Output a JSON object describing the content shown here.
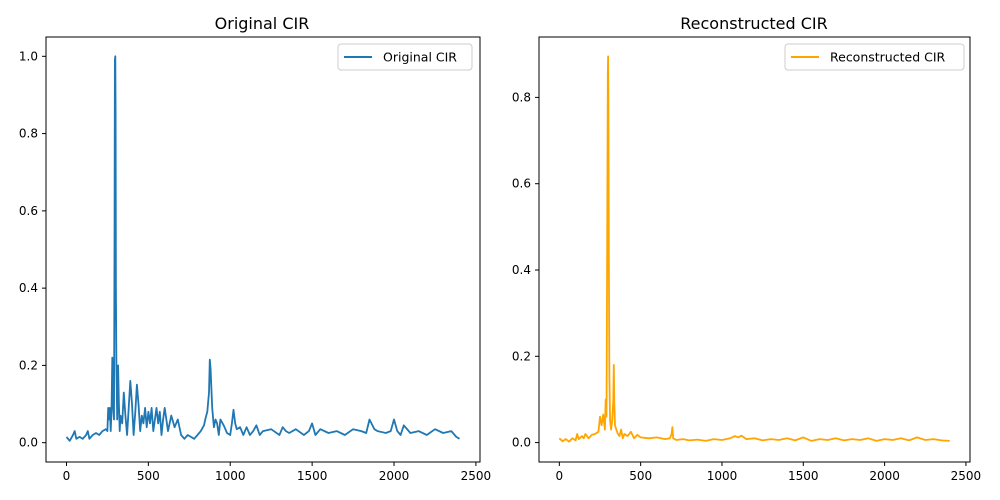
{
  "chart_data": [
    {
      "type": "line",
      "title": "Original CIR",
      "xlabel": "",
      "ylabel": "",
      "xlim": [
        -125,
        2525
      ],
      "ylim": [
        -0.05,
        1.05
      ],
      "xticks": [
        0,
        500,
        1000,
        1500,
        2000,
        2500
      ],
      "yticks": [
        0.0,
        0.2,
        0.4,
        0.6,
        0.8,
        1.0
      ],
      "xtick_labels": [
        "0",
        "500",
        "1000",
        "1500",
        "2000",
        "2500"
      ],
      "ytick_labels": [
        "0.0",
        "0.2",
        "0.4",
        "0.6",
        "0.8",
        "1.0"
      ],
      "grid": false,
      "legend_position": "top-right",
      "series": [
        {
          "name": "Original CIR",
          "color": "#1f77b4",
          "x": [
            0,
            20,
            40,
            50,
            60,
            80,
            100,
            120,
            130,
            140,
            160,
            180,
            200,
            220,
            240,
            250,
            255,
            260,
            265,
            270,
            275,
            280,
            285,
            290,
            293,
            296,
            298,
            300,
            302,
            305,
            310,
            315,
            320,
            325,
            330,
            340,
            350,
            360,
            370,
            380,
            390,
            400,
            410,
            420,
            430,
            440,
            450,
            460,
            470,
            480,
            490,
            500,
            510,
            520,
            530,
            540,
            550,
            560,
            570,
            580,
            590,
            600,
            620,
            640,
            660,
            680,
            700,
            720,
            740,
            760,
            780,
            800,
            820,
            840,
            850,
            860,
            870,
            875,
            880,
            885,
            890,
            900,
            910,
            920,
            930,
            940,
            960,
            980,
            1000,
            1010,
            1020,
            1030,
            1040,
            1060,
            1080,
            1100,
            1120,
            1140,
            1160,
            1180,
            1200,
            1250,
            1300,
            1320,
            1340,
            1360,
            1400,
            1450,
            1480,
            1500,
            1520,
            1550,
            1600,
            1650,
            1700,
            1750,
            1800,
            1830,
            1850,
            1880,
            1900,
            1950,
            1980,
            2000,
            2020,
            2040,
            2060,
            2100,
            2150,
            2200,
            2250,
            2300,
            2350,
            2380,
            2400
          ],
          "y": [
            0.015,
            0.005,
            0.02,
            0.03,
            0.01,
            0.015,
            0.01,
            0.02,
            0.03,
            0.01,
            0.02,
            0.025,
            0.02,
            0.03,
            0.035,
            0.03,
            0.09,
            0.06,
            0.09,
            0.03,
            0.08,
            0.22,
            0.1,
            0.06,
            0.5,
            0.99,
            1.0,
            0.85,
            0.4,
            0.2,
            0.06,
            0.2,
            0.1,
            0.03,
            0.07,
            0.05,
            0.13,
            0.07,
            0.02,
            0.09,
            0.16,
            0.1,
            0.02,
            0.08,
            0.15,
            0.1,
            0.03,
            0.07,
            0.05,
            0.09,
            0.04,
            0.08,
            0.05,
            0.09,
            0.03,
            0.06,
            0.09,
            0.05,
            0.08,
            0.02,
            0.06,
            0.09,
            0.03,
            0.07,
            0.04,
            0.06,
            0.02,
            0.01,
            0.02,
            0.015,
            0.01,
            0.02,
            0.03,
            0.045,
            0.065,
            0.08,
            0.13,
            0.215,
            0.19,
            0.14,
            0.09,
            0.04,
            0.06,
            0.05,
            0.02,
            0.06,
            0.045,
            0.025,
            0.02,
            0.05,
            0.085,
            0.05,
            0.035,
            0.04,
            0.02,
            0.04,
            0.02,
            0.03,
            0.045,
            0.02,
            0.03,
            0.035,
            0.02,
            0.04,
            0.03,
            0.025,
            0.035,
            0.02,
            0.03,
            0.05,
            0.02,
            0.035,
            0.025,
            0.03,
            0.02,
            0.035,
            0.03,
            0.025,
            0.06,
            0.035,
            0.03,
            0.025,
            0.03,
            0.06,
            0.03,
            0.02,
            0.045,
            0.025,
            0.03,
            0.02,
            0.035,
            0.025,
            0.03,
            0.015,
            0.01
          ]
        }
      ]
    },
    {
      "type": "line",
      "title": "Reconstructed CIR",
      "xlabel": "",
      "ylabel": "",
      "xlim": [
        -125,
        2525
      ],
      "ylim": [
        -0.045,
        0.94
      ],
      "xticks": [
        0,
        500,
        1000,
        1500,
        2000,
        2500
      ],
      "yticks": [
        0.0,
        0.2,
        0.4,
        0.6,
        0.8
      ],
      "xtick_labels": [
        "0",
        "500",
        "1000",
        "1500",
        "2000",
        "2500"
      ],
      "ytick_labels": [
        "0.0",
        "0.2",
        "0.4",
        "0.6",
        "0.8"
      ],
      "grid": false,
      "legend_position": "top-right",
      "series": [
        {
          "name": "Reconstructed CIR",
          "color": "#ffa500",
          "x": [
            0,
            20,
            40,
            60,
            80,
            100,
            110,
            120,
            140,
            150,
            160,
            180,
            200,
            220,
            240,
            250,
            260,
            270,
            280,
            285,
            290,
            294,
            298,
            300,
            302,
            305,
            308,
            312,
            318,
            325,
            332,
            335,
            338,
            342,
            350,
            360,
            370,
            380,
            390,
            400,
            420,
            440,
            460,
            480,
            500,
            550,
            600,
            650,
            680,
            690,
            695,
            700,
            720,
            760,
            800,
            850,
            900,
            950,
            1000,
            1050,
            1080,
            1100,
            1120,
            1150,
            1200,
            1250,
            1300,
            1350,
            1400,
            1450,
            1500,
            1550,
            1600,
            1650,
            1700,
            1750,
            1800,
            1850,
            1900,
            1950,
            2000,
            2050,
            2100,
            2150,
            2200,
            2250,
            2300,
            2350,
            2400
          ],
          "y": [
            0.01,
            0.003,
            0.008,
            0.002,
            0.01,
            0.005,
            0.02,
            0.008,
            0.015,
            0.01,
            0.02,
            0.01,
            0.018,
            0.02,
            0.025,
            0.06,
            0.04,
            0.065,
            0.03,
            0.1,
            0.06,
            0.4,
            0.85,
            0.895,
            0.8,
            0.4,
            0.15,
            0.05,
            0.03,
            0.05,
            0.1,
            0.18,
            0.09,
            0.04,
            0.03,
            0.02,
            0.015,
            0.03,
            0.01,
            0.02,
            0.015,
            0.025,
            0.01,
            0.018,
            0.012,
            0.01,
            0.012,
            0.008,
            0.01,
            0.02,
            0.036,
            0.01,
            0.006,
            0.008,
            0.005,
            0.007,
            0.004,
            0.008,
            0.006,
            0.01,
            0.015,
            0.012,
            0.016,
            0.008,
            0.01,
            0.005,
            0.008,
            0.006,
            0.01,
            0.005,
            0.012,
            0.004,
            0.008,
            0.006,
            0.01,
            0.005,
            0.008,
            0.006,
            0.01,
            0.004,
            0.008,
            0.006,
            0.01,
            0.005,
            0.012,
            0.006,
            0.008,
            0.005,
            0.004
          ]
        }
      ]
    }
  ]
}
